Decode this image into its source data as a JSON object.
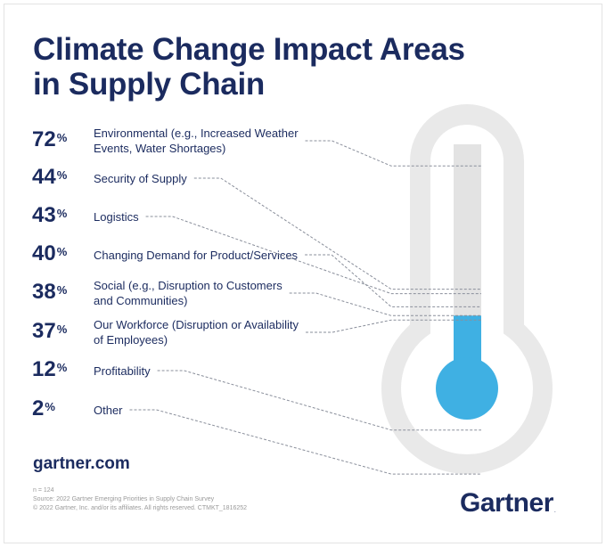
{
  "title_lines": [
    "Climate Change Impact Areas",
    "in Supply Chain"
  ],
  "chart_data": {
    "type": "bar",
    "title": "Climate Change Impact Areas in Supply Chain",
    "unit": "%",
    "ylim": [
      0,
      100
    ],
    "rows": [
      {
        "value": 72,
        "pct_text": "72",
        "label_lines": [
          "Environmental (e.g., Increased Weather",
          "Events, Water Shortages)"
        ]
      },
      {
        "value": 44,
        "pct_text": "44",
        "label_lines": [
          "Security of Supply"
        ]
      },
      {
        "value": 43,
        "pct_text": "43",
        "label_lines": [
          "Logistics"
        ]
      },
      {
        "value": 40,
        "pct_text": "40",
        "label_lines": [
          "Changing Demand for Product/Services"
        ]
      },
      {
        "value": 38,
        "pct_text": "38",
        "label_lines": [
          "Social (e.g., Disruption to Customers",
          "and Communities)"
        ]
      },
      {
        "value": 37,
        "pct_text": "37",
        "label_lines": [
          "Our Workforce (Disruption or Availability",
          "of Employees)"
        ]
      },
      {
        "value": 12,
        "pct_text": "12",
        "label_lines": [
          "Profitability"
        ]
      },
      {
        "value": 2,
        "pct_text": "2",
        "label_lines": [
          "Other"
        ]
      }
    ],
    "fill_value": 38
  },
  "colors": {
    "navy": "#1b2b5f",
    "fill": "#3fb0e3",
    "tube_outer": "#e9e9e9",
    "tube_inner": "#ffffff",
    "tube_track": "#e3e3e3",
    "leader": "#8a8f9b"
  },
  "website": "gartner.com",
  "footnote_lines": [
    "n = 124",
    "Source: 2022 Gartner Emerging Priorities in Supply Chain Survey",
    "© 2022 Gartner, Inc. and/or its affiliates. All rights reserved. CTMKT_1816252"
  ],
  "logo_text": "Gartner",
  "logo_mark": "."
}
